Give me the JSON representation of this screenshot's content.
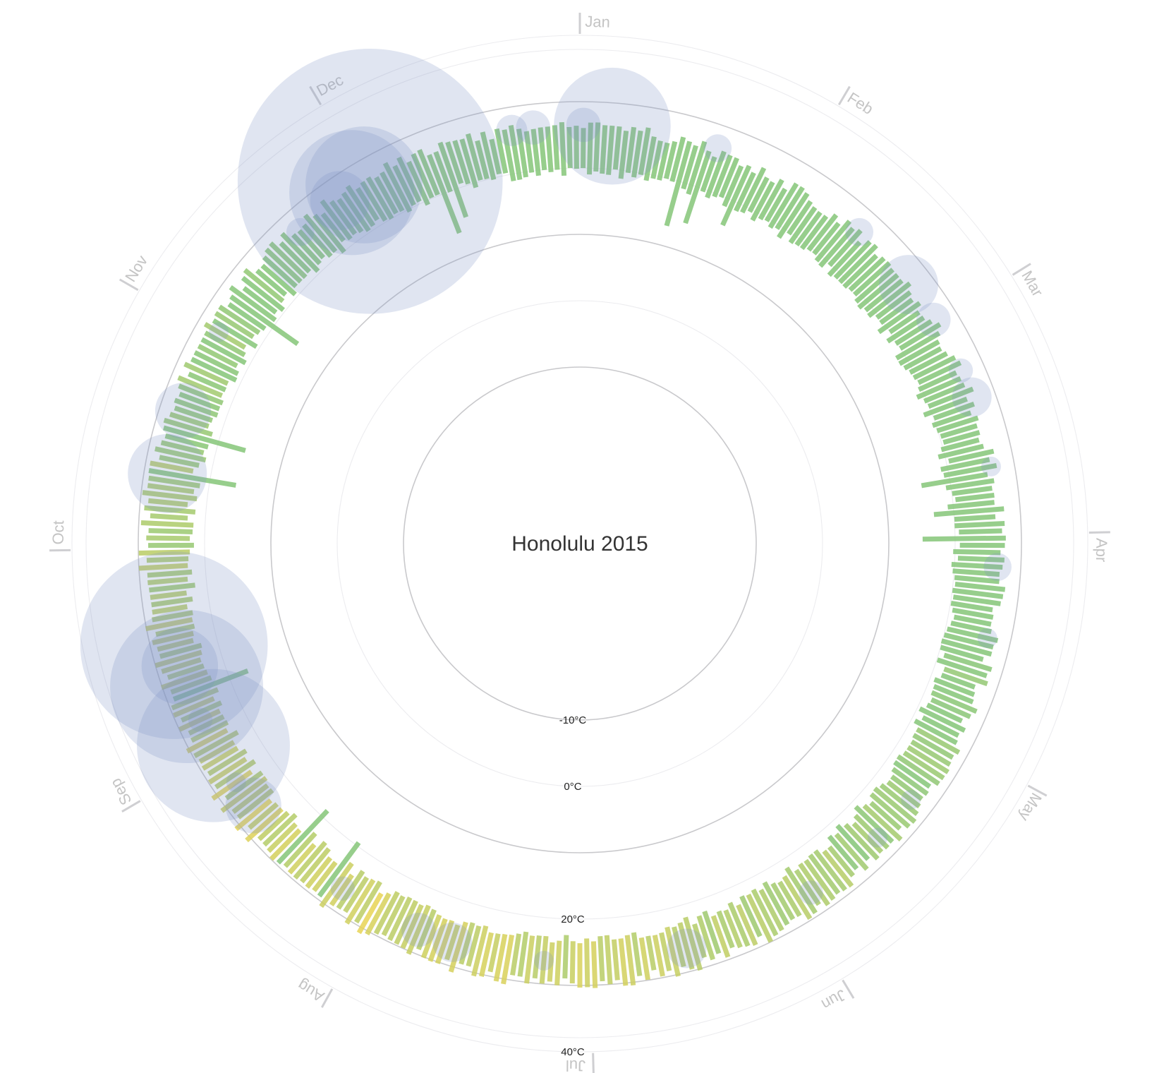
{
  "chart_data": {
    "type": "radial-bar",
    "title": "Honolulu 2015",
    "months": [
      "Jan",
      "Feb",
      "Mar",
      "Apr",
      "May",
      "Jun",
      "Jul",
      "Aug",
      "Sep",
      "Oct",
      "Nov",
      "Dec"
    ],
    "temperature_scale": {
      "domain": [
        -10,
        40
      ],
      "ticks": [
        -10,
        0,
        20,
        40
      ],
      "unit": "°C"
    },
    "temperature_tick_labels": [
      "-10°C",
      "0°C",
      "20°C",
      "40°C"
    ],
    "series": [
      {
        "name": "Daily temperature range",
        "approx_min": 20,
        "approx_max": 30
      },
      {
        "name": "Precipitation"
      }
    ],
    "precipitation_events": [
      {
        "date": "Jan 1",
        "value": 3
      },
      {
        "date": "Jan 5",
        "value": 35
      },
      {
        "date": "Jan 20",
        "value": 2
      },
      {
        "date": "Feb 12",
        "value": 2
      },
      {
        "date": "Feb 22",
        "value": 9
      },
      {
        "date": "Feb 28",
        "value": 3
      },
      {
        "date": "Mar 8",
        "value": 1.5
      },
      {
        "date": "Mar 12",
        "value": 4
      },
      {
        "date": "Mar 22",
        "value": 1
      },
      {
        "date": "Apr 5",
        "value": 2
      },
      {
        "date": "Apr 15",
        "value": 1
      },
      {
        "date": "May 10",
        "value": 1
      },
      {
        "date": "May 17",
        "value": 1
      },
      {
        "date": "May 29",
        "value": 1.5
      },
      {
        "date": "Jun 17",
        "value": 4
      },
      {
        "date": "Jul 7",
        "value": 1
      },
      {
        "date": "Jul 20",
        "value": 4
      },
      {
        "date": "Jul 25",
        "value": 3
      },
      {
        "date": "Aug 6",
        "value": 1.5
      },
      {
        "date": "Aug 23",
        "value": 8
      },
      {
        "date": "Aug 27",
        "value": 1
      },
      {
        "date": "Sep 2",
        "value": 60
      },
      {
        "date": "Sep 6",
        "value": 1.5
      },
      {
        "date": "Sep 11",
        "value": 60
      },
      {
        "date": "Sep 14",
        "value": 15
      },
      {
        "date": "Sep 17",
        "value": 90
      },
      {
        "date": "Oct 11",
        "value": 16
      },
      {
        "date": "Oct 20",
        "value": 8
      },
      {
        "date": "Nov 1",
        "value": 1
      },
      {
        "date": "Nov 19",
        "value": 2
      },
      {
        "date": "Nov 26",
        "value": 9
      },
      {
        "date": "Nov 28",
        "value": 40
      },
      {
        "date": "Nov 30",
        "value": 35
      },
      {
        "date": "Dec 1",
        "value": 180
      },
      {
        "date": "Dec 22",
        "value": 2.5
      },
      {
        "date": "Dec 25",
        "value": 3
      }
    ]
  }
}
